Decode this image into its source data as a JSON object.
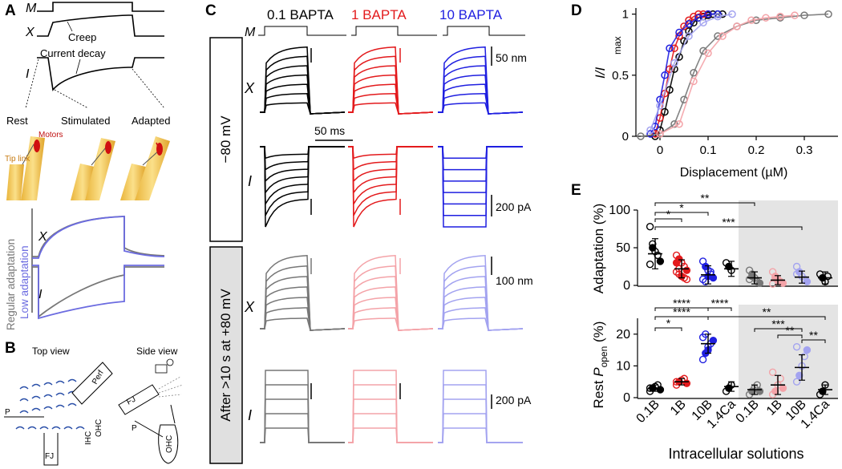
{
  "panel_a": {
    "letter": "A",
    "trace_labels": {
      "m": "M",
      "x": "X",
      "i": "I"
    },
    "annotations": {
      "creep": "Creep",
      "current_decay": "Current decay"
    },
    "states": [
      "Rest",
      "Stimulated",
      "Adapted"
    ],
    "tip_link": "Tip link",
    "motors": "Motors",
    "legend": {
      "regular": "Regular adaptation",
      "low": "Low adaptation"
    },
    "sub_labels": {
      "x": "X",
      "i": "I"
    }
  },
  "panel_b": {
    "letter": "B",
    "top_view": "Top view",
    "side_view": "Side view",
    "labels": {
      "perf": "Perf",
      "p_top": "P",
      "fj_top": "FJ",
      "ihc": "IHC",
      "ohc_top": "OHC",
      "fj_side": "FJ",
      "p_side": "P",
      "ohc_side": "OHC"
    }
  },
  "panel_c": {
    "letter": "C",
    "columns": [
      {
        "label": "0.1 BAPTA",
        "color": "#000000"
      },
      {
        "label": "1 BAPTA",
        "color": "#e31a1c"
      },
      {
        "label": "10 BAPTA",
        "color": "#1f1fe0"
      }
    ],
    "stim_label": "M",
    "row_labels": {
      "x": "X",
      "i": "I"
    },
    "condition_top": "−80 mV",
    "condition_bottom": "After >10 s at +80 mV",
    "scale_bars": {
      "time": "50 ms",
      "disp_top": "50 nm",
      "curr_top": "200 pA",
      "disp_bottom": "100 nm",
      "curr_bottom": "200 pA"
    },
    "after_colors": [
      "#777777",
      "#f4a3a8",
      "#a3a3f0"
    ]
  },
  "panel_d": {
    "letter": "D",
    "ylabel_main": "I/I",
    "ylabel_sub": "max",
    "xlabel": "Displacement (µM)",
    "x_ticks": [
      "0",
      "0.1",
      "0.2",
      "0.3"
    ],
    "y_ticks": [
      "0",
      "0.5",
      "1"
    ]
  },
  "panel_e": {
    "letter": "E",
    "top_ylabel": "Adaptation (%)",
    "top_ticks": [
      "0",
      "50",
      "100"
    ],
    "bottom_ylabel_pre": "Rest ",
    "bottom_ylabel_p": "P",
    "bottom_ylabel_sub": "open",
    "bottom_ylabel_post": " (%)",
    "bottom_ticks": [
      "0",
      "10",
      "20"
    ],
    "categories": [
      "0.1B",
      "1B",
      "10B",
      "1.4Ca",
      "0.1B",
      "1B",
      "10B",
      "1.4Ca"
    ],
    "xlabel": "Intracellular solutions",
    "top_sig": [
      "**",
      "*",
      "*",
      "***"
    ],
    "bottom_sig": [
      "****",
      "****",
      "*",
      "****",
      "**",
      "***",
      "**",
      "**"
    ]
  },
  "chart_data": [
    {
      "type": "scatter",
      "panel": "D",
      "xlabel": "Displacement (µM)",
      "ylabel": "I/Imax",
      "xlim": [
        -0.05,
        0.37
      ],
      "ylim": [
        0,
        1.05
      ],
      "series": [
        {
          "color": "#000000",
          "x": [
            -0.01,
            0.0,
            0.01,
            0.02,
            0.03,
            0.04,
            0.05,
            0.06,
            0.07,
            0.08,
            0.09,
            0.1,
            0.11,
            0.12,
            0.13
          ],
          "y": [
            0.0,
            0.05,
            0.2,
            0.38,
            0.55,
            0.65,
            0.78,
            0.86,
            0.93,
            0.97,
            0.98,
            0.99,
            1.0,
            1.0,
            1.0
          ]
        },
        {
          "color": "#e31a1c",
          "x": [
            -0.01,
            0.0,
            0.01,
            0.02,
            0.03,
            0.04,
            0.05,
            0.06,
            0.07,
            0.08,
            0.09,
            0.1
          ],
          "y": [
            0.02,
            0.15,
            0.35,
            0.55,
            0.72,
            0.82,
            0.9,
            0.95,
            0.98,
            1.0,
            1.0,
            1.0
          ]
        },
        {
          "color": "#1f1fe0",
          "x": [
            -0.02,
            -0.01,
            0.0,
            0.01,
            0.02,
            0.04,
            0.06,
            0.08,
            0.1,
            0.12
          ],
          "y": [
            0.02,
            0.08,
            0.3,
            0.5,
            0.72,
            0.85,
            0.92,
            0.97,
            1.0,
            1.0
          ]
        },
        {
          "color": "#777777",
          "x": [
            -0.04,
            0.0,
            0.03,
            0.05,
            0.07,
            0.09,
            0.12,
            0.16,
            0.2,
            0.25,
            0.3,
            0.35
          ],
          "y": [
            0.0,
            0.02,
            0.1,
            0.3,
            0.52,
            0.7,
            0.82,
            0.9,
            0.95,
            0.97,
            0.99,
            1.0
          ]
        },
        {
          "color": "#f4a3a8",
          "x": [
            0.0,
            0.04,
            0.07,
            0.1,
            0.13,
            0.16,
            0.19,
            0.22,
            0.25,
            0.28
          ],
          "y": [
            0.02,
            0.1,
            0.45,
            0.68,
            0.82,
            0.9,
            0.95,
            0.97,
            0.98,
            0.99
          ]
        },
        {
          "color": "#a3a3f0",
          "x": [
            -0.02,
            0.0,
            0.03,
            0.06,
            0.09,
            0.12,
            0.15
          ],
          "y": [
            0.05,
            0.25,
            0.6,
            0.82,
            0.93,
            0.98,
            1.0
          ]
        }
      ]
    },
    {
      "type": "scatter",
      "panel": "E-top",
      "ylabel": "Adaptation (%)",
      "ylim": [
        0,
        100
      ],
      "categories": [
        "0.1B",
        "1B",
        "10B",
        "1.4Ca",
        "0.1B",
        "1B",
        "10B",
        "1.4Ca"
      ],
      "means": [
        42,
        22,
        14,
        22,
        10,
        7,
        11,
        10
      ],
      "errors": [
        20,
        12,
        12,
        10,
        8,
        6,
        8,
        8
      ],
      "colors": [
        "#000000",
        "#e31a1c",
        "#1f1fe0",
        "#000000",
        "#777777",
        "#f4a3a8",
        "#a3a3f0",
        "#000000"
      ],
      "points": [
        [
          78,
          50,
          45,
          40,
          32,
          28,
          55
        ],
        [
          40,
          35,
          30,
          25,
          20,
          18,
          15,
          12,
          10,
          8,
          30,
          22
        ],
        [
          32,
          25,
          20,
          15,
          10,
          8,
          5,
          12,
          18
        ],
        [
          30,
          25,
          20
        ],
        [
          20,
          15,
          10,
          5,
          3,
          8,
          12
        ],
        [
          18,
          12,
          8,
          5,
          3,
          2,
          10,
          6
        ],
        [
          25,
          18,
          12,
          8,
          5,
          15
        ],
        [
          15,
          10,
          5,
          12
        ]
      ]
    },
    {
      "type": "scatter",
      "panel": "E-bottom",
      "ylabel": "Rest Popen (%)",
      "ylim": [
        0,
        25
      ],
      "categories": [
        "0.1B",
        "1B",
        "10B",
        "1.4Ca",
        "0.1B",
        "1B",
        "10B",
        "1.4Ca"
      ],
      "means": [
        3,
        5,
        17,
        3.5,
        2.5,
        4,
        9.5,
        2.5
      ],
      "errors": [
        1,
        1,
        3,
        1.5,
        1.5,
        3,
        4,
        1.5
      ],
      "colors": [
        "#000000",
        "#e31a1c",
        "#1f1fe0",
        "#000000",
        "#777777",
        "#f4a3a8",
        "#a3a3f0",
        "#000000"
      ],
      "points": [
        [
          2,
          3,
          3.5,
          4,
          2.5,
          3
        ],
        [
          4,
          5,
          5.5,
          6,
          4.5,
          5
        ],
        [
          12,
          14,
          16,
          17,
          18,
          19,
          20,
          15
        ],
        [
          2,
          3,
          4
        ],
        [
          1,
          2,
          3,
          4,
          2
        ],
        [
          1,
          2,
          4,
          6,
          3,
          8
        ],
        [
          5,
          7,
          10,
          13,
          15,
          16
        ],
        [
          1,
          2,
          4
        ]
      ]
    }
  ]
}
